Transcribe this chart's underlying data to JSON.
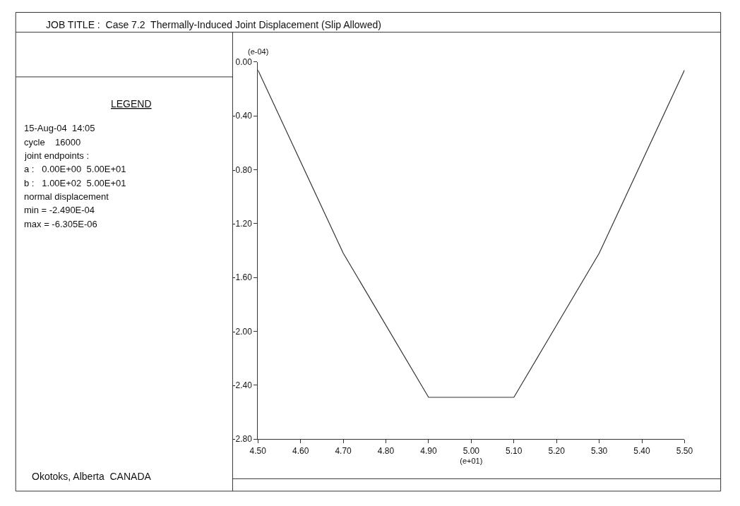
{
  "chart_data": {
    "type": "line",
    "title": "JOB TITLE :  Case 7.2  Thermally-Induced Joint Displacement (Slip Allowed)",
    "xlabel": "(e+01)",
    "ylabel": "(e-04)",
    "x": [
      4.5,
      4.7,
      4.9,
      5.1,
      5.3,
      5.5
    ],
    "series": [
      {
        "color": "#333333",
        "values": [
          -0.06,
          -1.42,
          -2.49,
          -2.49,
          -1.42,
          -0.06
        ]
      }
    ],
    "xlim": [
      4.5,
      5.5
    ],
    "xticks": [
      {
        "value": 4.5,
        "label": "4.50"
      },
      {
        "value": 4.6,
        "label": "4.60"
      },
      {
        "value": 4.7,
        "label": "4.70"
      },
      {
        "value": 4.8,
        "label": "4.80"
      },
      {
        "value": 4.9,
        "label": "4.90"
      },
      {
        "value": 5.0,
        "label": "5.00"
      },
      {
        "value": 5.1,
        "label": "5.10"
      },
      {
        "value": 5.2,
        "label": "5.20"
      },
      {
        "value": 5.3,
        "label": "5.30"
      },
      {
        "value": 5.4,
        "label": "5.40"
      },
      {
        "value": 5.5,
        "label": "5.50"
      }
    ],
    "ylim": [
      -2.8,
      0.0
    ],
    "yticks": [
      {
        "value": 0.0,
        "label": "0.00"
      },
      {
        "value": -0.4,
        "label": "-0.40"
      },
      {
        "value": -0.8,
        "label": "-0.80"
      },
      {
        "value": -1.2,
        "label": "-1.20"
      },
      {
        "value": -1.6,
        "label": "-1.60"
      },
      {
        "value": -2.0,
        "label": "-2.00"
      },
      {
        "value": -2.4,
        "label": "-2.40"
      },
      {
        "value": -2.8,
        "label": "-2.80"
      }
    ],
    "marker": "none",
    "line_style": "solid",
    "annotations": [
      "LEGEND",
      "15-Aug-04  14:05",
      "cycle    16000",
      "joint endpoints :",
      "a :   0.00E+00  5.00E+01",
      "b :   1.00E+02  5.00E+01",
      "normal displacement",
      "min = -2.490E-04",
      "max = -6.305E-06",
      "Okotoks, Alberta  CANADA"
    ]
  }
}
